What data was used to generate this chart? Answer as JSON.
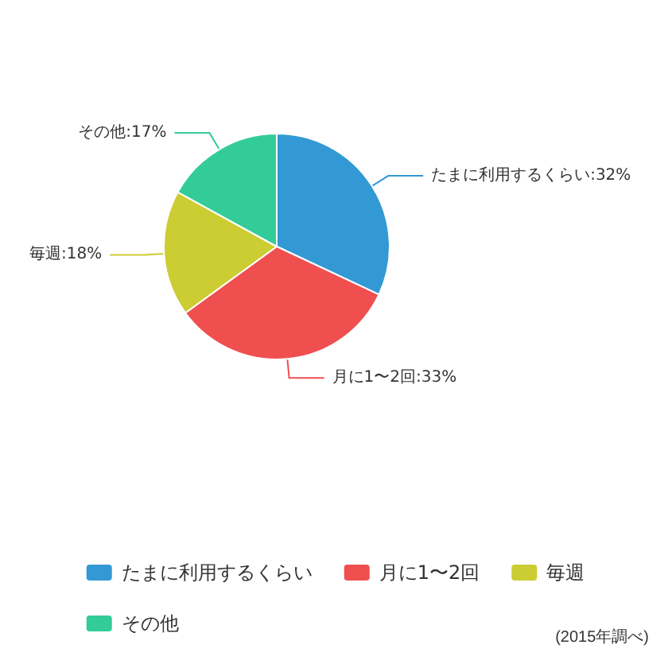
{
  "chart_data": {
    "type": "pie",
    "categories": [
      "たまに利用するくらい",
      "月に1〜2回",
      "毎週",
      "その他"
    ],
    "values": [
      32,
      33,
      18,
      17
    ],
    "colors": [
      "#3399d4",
      "#ef4f4f",
      "#cccc33",
      "#33cc99"
    ],
    "value_labels": [
      ":32%",
      ":33%",
      ":18%",
      ":17%"
    ],
    "legend": "bottom",
    "annotations": [
      "(2015年調べ)"
    ]
  }
}
